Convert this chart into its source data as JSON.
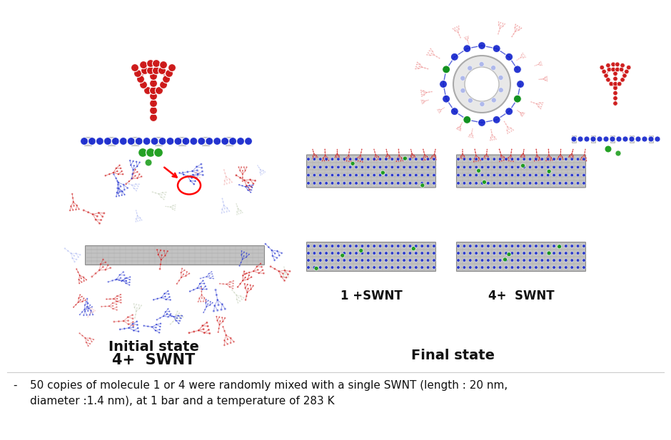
{
  "background_color": "#ffffff",
  "label_initial_state": "Initial state",
  "label_4swnt_left": "4+  SWNT",
  "label_final_state": "Final state",
  "label_1swnt": "1 +SWNT",
  "label_4swnt_right": "4+  SWNT",
  "bullet_char": "-",
  "bullet_line1": "50 copies of molecule 1 or 4 were randomly mixed with a single SWNT (length : 20 nm,",
  "bullet_line2": "diameter :1.4 nm), at 1 bar and a temperature of 283 K",
  "font_size_labels": 13,
  "font_size_sublabels": 12,
  "font_size_bullet": 11,
  "fig_width": 9.4,
  "fig_height": 6.17,
  "red": "#cc1111",
  "blue": "#1122cc",
  "green": "#119911",
  "grey": "#bbbbbb",
  "darkgrey": "#888888",
  "lightred": "#ee8888",
  "lightblue": "#8899ee"
}
